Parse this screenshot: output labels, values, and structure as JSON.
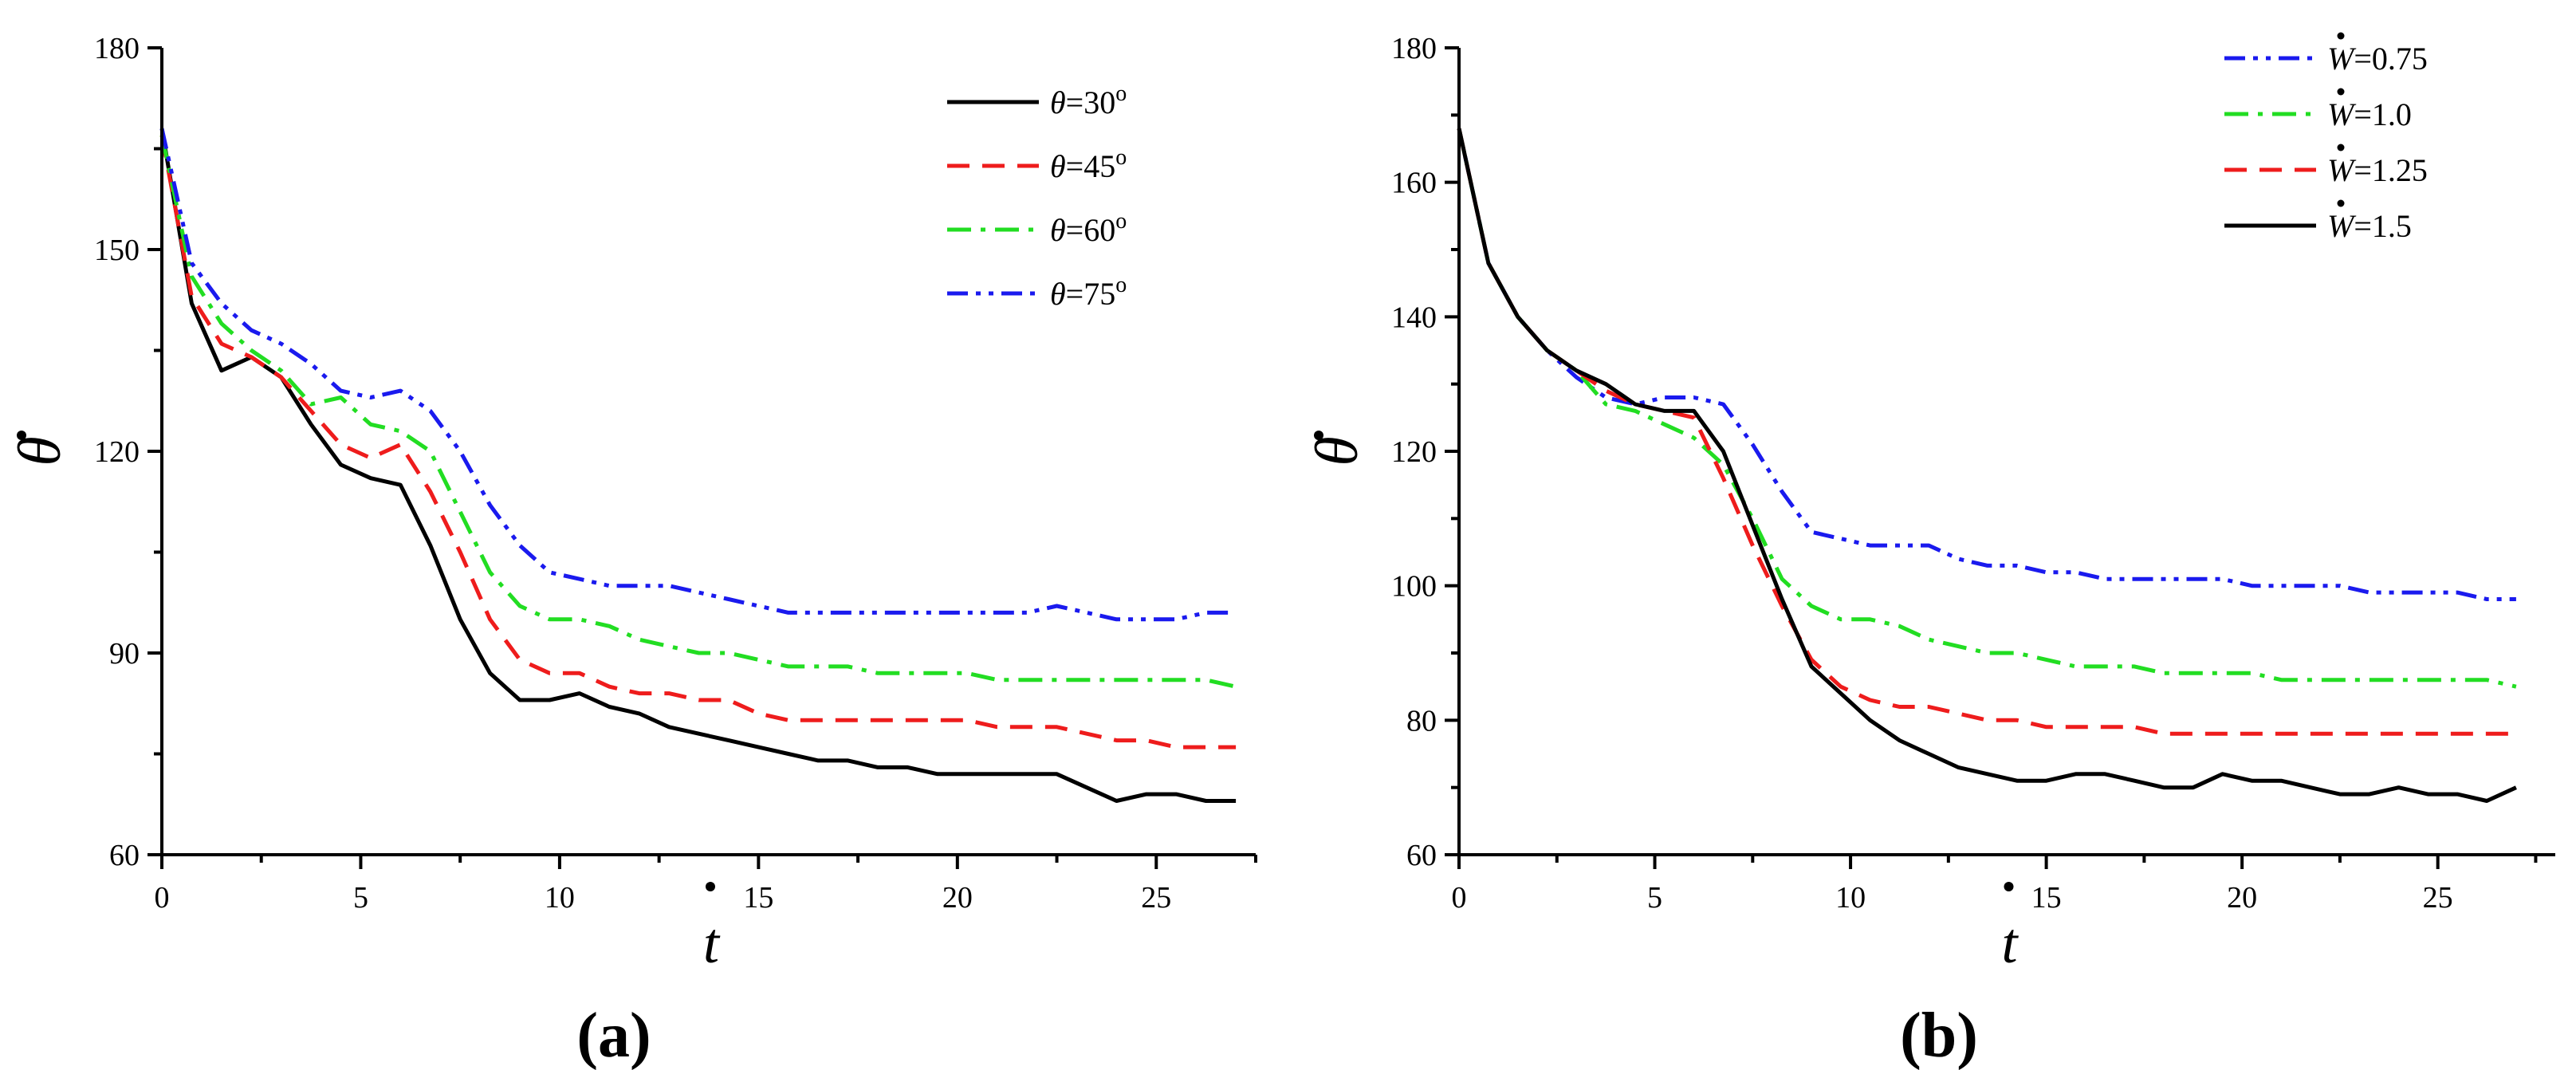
{
  "chart_data": [
    {
      "panel_label": "(a)",
      "type": "line",
      "xlabel": "t",
      "ylabel": "θ",
      "xlim": [
        0,
        27.5
      ],
      "ylim": [
        60,
        180
      ],
      "xticks": [
        "0",
        "5",
        "10",
        "15",
        "20",
        "25"
      ],
      "yticks": [
        "60",
        "90",
        "120",
        "150",
        "180"
      ],
      "legend_position": "top-right",
      "series": [
        {
          "name": "θ=30°",
          "legend_var": "θ",
          "legend_value": "=30",
          "legend_sup": "o",
          "style": "solid",
          "color": "#000000",
          "x": [
            0,
            0.75,
            1.5,
            2.25,
            3.0,
            3.75,
            4.5,
            5.25,
            6.0,
            6.75,
            7.5,
            8.25,
            9.0,
            9.75,
            10.5,
            11.25,
            12.0,
            12.75,
            13.5,
            14.25,
            15.0,
            15.75,
            16.5,
            17.25,
            18.0,
            18.75,
            19.5,
            20.25,
            21.0,
            21.75,
            22.5,
            23.25,
            24.0,
            24.75,
            25.5,
            26.25,
            27.0
          ],
          "y": [
            168,
            142,
            132,
            134,
            131,
            124,
            118,
            116,
            115,
            106,
            95,
            87,
            83,
            83,
            84,
            82,
            81,
            79,
            78,
            77,
            76,
            75,
            74,
            74,
            73,
            73,
            72,
            72,
            72,
            72,
            72,
            70,
            68,
            69,
            69,
            68,
            68
          ]
        },
        {
          "name": "θ=45°",
          "legend_var": "θ",
          "legend_value": "=45",
          "legend_sup": "o",
          "style": "dashed",
          "color": "#ee1c1c",
          "x": [
            0,
            0.75,
            1.5,
            2.25,
            3.0,
            3.75,
            4.5,
            5.25,
            6.0,
            6.75,
            7.5,
            8.25,
            9.0,
            9.75,
            10.5,
            11.25,
            12.0,
            12.75,
            13.5,
            14.25,
            15.0,
            15.75,
            16.5,
            17.25,
            18.0,
            18.75,
            19.5,
            20.25,
            21.0,
            21.75,
            22.5,
            23.25,
            24.0,
            24.75,
            25.5,
            26.25,
            27.0
          ],
          "y": [
            167,
            143,
            136,
            134,
            131,
            126,
            121,
            119,
            121,
            114,
            105,
            95,
            89,
            87,
            87,
            85,
            84,
            84,
            83,
            83,
            81,
            80,
            80,
            80,
            80,
            80,
            80,
            80,
            79,
            79,
            79,
            78,
            77,
            77,
            76,
            76,
            76
          ]
        },
        {
          "name": "θ=60°",
          "legend_var": "θ",
          "legend_value": "=60",
          "legend_sup": "o",
          "style": "dashdot",
          "color": "#22dd22",
          "x": [
            0,
            0.75,
            1.5,
            2.25,
            3.0,
            3.75,
            4.5,
            5.25,
            6.0,
            6.75,
            7.5,
            8.25,
            9.0,
            9.75,
            10.5,
            11.25,
            12.0,
            12.75,
            13.5,
            14.25,
            15.0,
            15.75,
            16.5,
            17.25,
            18.0,
            18.75,
            19.5,
            20.25,
            21.0,
            21.75,
            22.5,
            23.25,
            24.0,
            24.75,
            25.5,
            26.25,
            27.0
          ],
          "y": [
            167,
            146,
            139,
            135,
            132,
            127,
            128,
            124,
            123,
            120,
            111,
            102,
            97,
            95,
            95,
            94,
            92,
            91,
            90,
            90,
            89,
            88,
            88,
            88,
            87,
            87,
            87,
            87,
            86,
            86,
            86,
            86,
            86,
            86,
            86,
            86,
            85
          ]
        },
        {
          "name": "θ=75°",
          "legend_var": "θ",
          "legend_value": "=75",
          "legend_sup": "o",
          "style": "dashdotdot",
          "color": "#1a1aee",
          "x": [
            0,
            0.75,
            1.5,
            2.25,
            3.0,
            3.75,
            4.5,
            5.25,
            6.0,
            6.75,
            7.5,
            8.25,
            9.0,
            9.75,
            10.5,
            11.25,
            12.0,
            12.75,
            13.5,
            14.25,
            15.0,
            15.75,
            16.5,
            17.25,
            18.0,
            18.75,
            19.5,
            20.25,
            21.0,
            21.75,
            22.5,
            23.25,
            24.0,
            24.75,
            25.5,
            26.25,
            27.0
          ],
          "y": [
            168,
            148,
            142,
            138,
            136,
            133,
            129,
            128,
            129,
            126,
            120,
            112,
            106,
            102,
            101,
            100,
            100,
            100,
            99,
            98,
            97,
            96,
            96,
            96,
            96,
            96,
            96,
            96,
            96,
            96,
            97,
            96,
            95,
            95,
            95,
            96,
            96
          ]
        }
      ]
    },
    {
      "panel_label": "(b)",
      "type": "line",
      "xlabel": "t",
      "ylabel": "θ",
      "xlim": [
        0,
        28
      ],
      "ylim": [
        60,
        180
      ],
      "xticks": [
        "0",
        "5",
        "10",
        "15",
        "20",
        "25"
      ],
      "yticks": [
        "60",
        "80",
        "100",
        "120",
        "140",
        "160",
        "180"
      ],
      "legend_position": "top-right",
      "series": [
        {
          "name": "Ẇ=0.75",
          "legend_var": "W",
          "legend_value": "=0.75",
          "style": "dashdotdot",
          "color": "#1a1aee",
          "x": [
            0,
            0.75,
            1.5,
            2.25,
            3.0,
            3.75,
            4.5,
            5.25,
            6.0,
            6.75,
            7.5,
            8.25,
            9.0,
            9.75,
            10.5,
            11.25,
            12.0,
            12.75,
            13.5,
            14.25,
            15.0,
            15.75,
            16.5,
            17.25,
            18.0,
            18.75,
            19.5,
            20.25,
            21.0,
            21.75,
            22.5,
            23.25,
            24.0,
            24.75,
            25.5,
            26.25,
            27.0
          ],
          "y": [
            168,
            148,
            140,
            135,
            131,
            128,
            127,
            128,
            128,
            127,
            121,
            114,
            108,
            107,
            106,
            106,
            106,
            104,
            103,
            103,
            102,
            102,
            101,
            101,
            101,
            101,
            101,
            100,
            100,
            100,
            100,
            99,
            99,
            99,
            99,
            98,
            98
          ]
        },
        {
          "name": "Ẇ=1.0",
          "legend_var": "W",
          "legend_value": "=1.0",
          "style": "dashdot",
          "color": "#22dd22",
          "x": [
            0,
            0.75,
            1.5,
            2.25,
            3.0,
            3.75,
            4.5,
            5.25,
            6.0,
            6.75,
            7.5,
            8.25,
            9.0,
            9.75,
            10.5,
            11.25,
            12.0,
            12.75,
            13.5,
            14.25,
            15.0,
            15.75,
            16.5,
            17.25,
            18.0,
            18.75,
            19.5,
            20.25,
            21.0,
            21.75,
            22.5,
            23.25,
            24.0,
            24.75,
            25.5,
            26.25,
            27.0
          ],
          "y": [
            168,
            148,
            140,
            135,
            132,
            127,
            126,
            124,
            122,
            118,
            110,
            101,
            97,
            95,
            95,
            94,
            92,
            91,
            90,
            90,
            89,
            88,
            88,
            88,
            87,
            87,
            87,
            87,
            86,
            86,
            86,
            86,
            86,
            86,
            86,
            86,
            85
          ]
        },
        {
          "name": "Ẇ=1.25",
          "legend_var": "W",
          "legend_value": "=1.25",
          "style": "dashed",
          "color": "#ee1c1c",
          "x": [
            0,
            0.75,
            1.5,
            2.25,
            3.0,
            3.75,
            4.5,
            5.25,
            6.0,
            6.75,
            7.5,
            8.25,
            9.0,
            9.75,
            10.5,
            11.25,
            12.0,
            12.75,
            13.5,
            14.25,
            15.0,
            15.75,
            16.5,
            17.25,
            18.0,
            18.75,
            19.5,
            20.25,
            21.0,
            21.75,
            22.5,
            23.25,
            24.0,
            24.75,
            25.5,
            26.25,
            27.0
          ],
          "y": [
            168,
            148,
            140,
            135,
            132,
            129,
            127,
            126,
            125,
            116,
            106,
            97,
            89,
            85,
            83,
            82,
            82,
            81,
            80,
            80,
            79,
            79,
            79,
            79,
            78,
            78,
            78,
            78,
            78,
            78,
            78,
            78,
            78,
            78,
            78,
            78,
            78
          ]
        },
        {
          "name": "Ẇ=1.5",
          "legend_var": "W",
          "legend_value": "=1.5",
          "style": "solid",
          "color": "#000000",
          "x": [
            0,
            0.75,
            1.5,
            2.25,
            3.0,
            3.75,
            4.5,
            5.25,
            6.0,
            6.75,
            7.5,
            8.25,
            9.0,
            9.75,
            10.5,
            11.25,
            12.0,
            12.75,
            13.5,
            14.25,
            15.0,
            15.75,
            16.5,
            17.25,
            18.0,
            18.75,
            19.5,
            20.25,
            21.0,
            21.75,
            22.5,
            23.25,
            24.0,
            24.75,
            25.5,
            26.25,
            27.0
          ],
          "y": [
            168,
            148,
            140,
            135,
            132,
            130,
            127,
            126,
            126,
            120,
            109,
            98,
            88,
            84,
            80,
            77,
            75,
            73,
            72,
            71,
            71,
            72,
            72,
            71,
            70,
            70,
            72,
            71,
            71,
            70,
            69,
            69,
            70,
            69,
            69,
            68,
            70
          ]
        }
      ]
    }
  ]
}
